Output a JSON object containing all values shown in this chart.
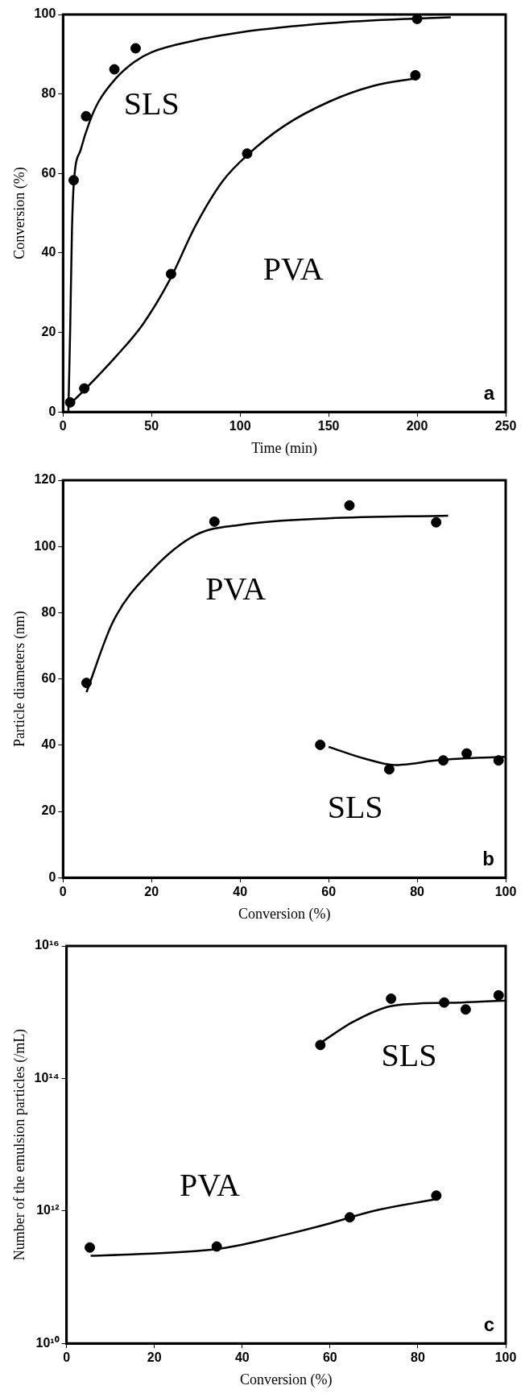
{
  "chart_data": [
    {
      "type": "scatter",
      "xlabel": "Time (min)",
      "ylabel": "Conversion (%)",
      "xlim": [
        0,
        250
      ],
      "xticks": [
        0,
        50,
        100,
        150,
        200,
        250
      ],
      "ylim": [
        0,
        100
      ],
      "yticks": [
        0,
        20,
        40,
        60,
        80,
        100
      ],
      "grid": false,
      "legend": false,
      "series": [
        {
          "name": "SLS",
          "marker": "circle",
          "color": "#000000",
          "x": [
            6,
            13,
            29,
            41,
            200
          ],
          "values": [
            58.3,
            74.4,
            86.2,
            91.5,
            98.9
          ]
        },
        {
          "name": "PVA",
          "marker": "circle",
          "color": "#000000",
          "x": [
            4,
            12,
            61,
            104,
            199
          ],
          "values": [
            2.4,
            5.9,
            34.7,
            65,
            84.7
          ]
        },
        {
          "type": "line",
          "color": "#000000",
          "x": [
            3,
            4,
            5,
            6,
            10,
            15,
            20,
            30,
            40,
            50,
            75,
            100,
            150,
            200,
            219
          ],
          "values": [
            0,
            20,
            45,
            57,
            66,
            73,
            78,
            84,
            88,
            90.5,
            93.5,
            95.5,
            97.8,
            99,
            99.3
          ]
        },
        {
          "type": "line",
          "color": "#000000",
          "x": [
            4,
            12,
            30,
            45,
            60,
            75,
            90,
            105,
            125,
            150,
            175,
            200
          ],
          "values": [
            2,
            5.5,
            14,
            22,
            33,
            47,
            58,
            65,
            72,
            78,
            82,
            84
          ]
        }
      ],
      "annotations": [
        "a"
      ]
    },
    {
      "type": "scatter",
      "xlabel": "Conversion (%)",
      "ylabel": "Particle diameters (nm)",
      "xlim": [
        0,
        100
      ],
      "xticks": [
        0,
        20,
        40,
        60,
        80,
        100
      ],
      "ylim": [
        0,
        120
      ],
      "yticks": [
        0,
        20,
        40,
        60,
        80,
        100,
        120
      ],
      "grid": false,
      "legend": false,
      "series": [
        {
          "name": "PVA",
          "marker": "circle",
          "color": "#000000",
          "x": [
            5.3,
            34.2,
            64.7,
            84.3
          ],
          "values": [
            58.8,
            107.5,
            112.4,
            107.3
          ]
        },
        {
          "name": "SLS",
          "marker": "circle",
          "color": "#000000",
          "x": [
            58.1,
            73.7,
            85.9,
            91.2,
            98.4
          ],
          "values": [
            40.1,
            32.7,
            35.4,
            37.5,
            35.4
          ]
        },
        {
          "type": "line",
          "color": "#000000",
          "x": [
            5.3,
            11.3,
            19.9,
            30,
            40,
            60,
            87
          ],
          "values": [
            56,
            77.3,
            92.6,
            103.5,
            106.5,
            108.5,
            109.3
          ]
        },
        {
          "type": "line",
          "color": "#000000",
          "x": [
            60,
            68,
            75,
            85,
            100
          ],
          "values": [
            39.5,
            36,
            34,
            35.5,
            36.5
          ]
        }
      ],
      "annotations": [
        "b"
      ]
    },
    {
      "type": "scatter",
      "xlabel": "Conversion (%)",
      "ylabel": "Number of the emulsion particles (/mL)",
      "log": "y",
      "xlim": [
        0,
        100
      ],
      "xticks": [
        0,
        20,
        40,
        60,
        80,
        100
      ],
      "ylim": [
        10000000000.0,
        1e+16
      ],
      "yticks": [
        {
          "value": 10000000000.0,
          "label": "10¹⁰"
        },
        {
          "value": 1000000000000.0,
          "label": "10¹²"
        },
        {
          "value": 100000000000000.0,
          "label": "10¹⁴"
        },
        {
          "value": 1e+16,
          "label": "10¹⁶"
        }
      ],
      "grid": false,
      "legend": false,
      "series": [
        {
          "name": "SLS",
          "marker": "circle",
          "color": "#000000",
          "x": [
            57.8,
            73.9,
            86,
            90.9,
            98.4
          ],
          "values": [
            320000000000000.0,
            1600000000000000.0,
            1400000000000000.0,
            1100000000000000.0,
            1800000000000000.0
          ]
        },
        {
          "name": "PVA",
          "marker": "circle",
          "color": "#000000",
          "x": [
            5.3,
            34.2,
            64.5,
            84.2
          ],
          "values": [
            280000000000.0,
            290000000000.0,
            800000000000.0,
            1700000000000.0
          ]
        },
        {
          "type": "line",
          "color": "#000000",
          "x": [
            58,
            65,
            73,
            80,
            90,
            100
          ],
          "values": [
            350000000000000.0,
            700000000000000.0,
            1200000000000000.0,
            1350000000000000.0,
            1400000000000000.0,
            1500000000000000.0
          ]
        },
        {
          "type": "line",
          "color": "#000000",
          "x": [
            5.5,
            15,
            35,
            50,
            60,
            70,
            84
          ],
          "values": [
            210000000000.0,
            220000000000.0,
            270000000000.0,
            440000000000.0,
            650000000000.0,
            1000000000000.0,
            1500000000000.0
          ]
        }
      ],
      "annotations": [
        "c"
      ]
    }
  ]
}
